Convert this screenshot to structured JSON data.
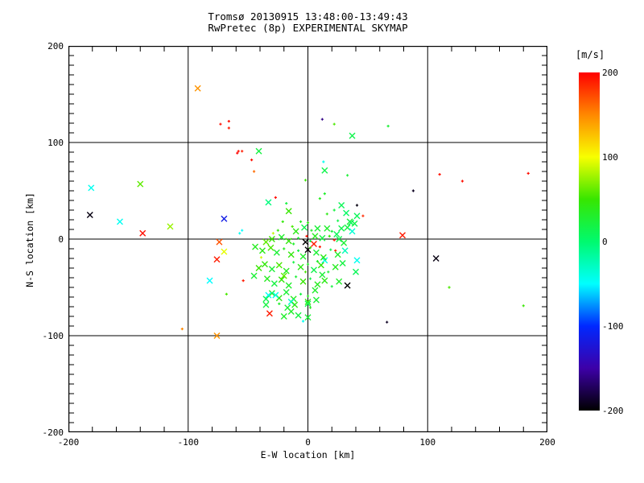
{
  "title": {
    "line1": "Tromsø 20130915 13:48:00-13:49:43",
    "line2": "RwPretec (8p) EXPERIMENTAL SKYMAP"
  },
  "chart_data": {
    "type": "scatter",
    "xlabel": "E-W location [km]",
    "ylabel": "N-S location [km]",
    "xlim": [
      -200,
      200
    ],
    "ylim": [
      -200,
      200
    ],
    "xticks": [
      -200,
      -100,
      0,
      100,
      200
    ],
    "yticks": [
      -200,
      -100,
      0,
      100,
      200
    ],
    "x_minor_interval": 20,
    "y_minor_interval": 10,
    "gridlines": [
      -100,
      0,
      100
    ],
    "grid": true,
    "background": "#ffffff",
    "axis_color": "#000000",
    "marker_types": {
      "x": "cross",
      "d": "small-dot"
    },
    "colorbar": {
      "label": "[m/s]",
      "ticks": [
        200,
        100,
        0,
        -100,
        -200
      ],
      "range": [
        -200,
        200
      ],
      "stops": [
        [
          200,
          "#ff0000"
        ],
        [
          150,
          "#ff8800"
        ],
        [
          100,
          "#f8ff00"
        ],
        [
          50,
          "#37e600"
        ],
        [
          0,
          "#00fa6e"
        ],
        [
          -50,
          "#00ffff"
        ],
        [
          -100,
          "#0028ff"
        ],
        [
          -150,
          "#3d00a8"
        ],
        [
          -200,
          "#000000"
        ]
      ]
    },
    "points": [
      [
        -181,
        53,
        -45,
        "x"
      ],
      [
        -140,
        57,
        60,
        "x"
      ],
      [
        -182,
        25,
        -195,
        "x"
      ],
      [
        -157,
        18,
        -45,
        "x"
      ],
      [
        -115,
        13,
        75,
        "x"
      ],
      [
        -138,
        6,
        195,
        "x"
      ],
      [
        -70,
        21,
        -115,
        "x"
      ],
      [
        -74,
        -3,
        170,
        "x"
      ],
      [
        -70,
        -13,
        95,
        "x"
      ],
      [
        -76,
        -21,
        190,
        "x"
      ],
      [
        -82,
        -43,
        -50,
        "x"
      ],
      [
        -68,
        -57,
        55,
        "d"
      ],
      [
        -59,
        89,
        200,
        "d"
      ],
      [
        -92,
        156,
        145,
        "x"
      ],
      [
        -73,
        119,
        195,
        "d"
      ],
      [
        -66,
        122,
        195,
        "d"
      ],
      [
        -66,
        115,
        190,
        "d"
      ],
      [
        12,
        124,
        -160,
        "d"
      ],
      [
        22,
        119,
        55,
        "d"
      ],
      [
        37,
        107,
        15,
        "x"
      ],
      [
        67,
        117,
        25,
        "d"
      ],
      [
        -58,
        91,
        195,
        "d"
      ],
      [
        -55,
        91,
        190,
        "d"
      ],
      [
        -41,
        91,
        20,
        "x"
      ],
      [
        -47,
        82,
        195,
        "d"
      ],
      [
        -45,
        70,
        160,
        "d"
      ],
      [
        13,
        80,
        -45,
        "d"
      ],
      [
        14,
        71,
        15,
        "x"
      ],
      [
        33,
        66,
        25,
        "d"
      ],
      [
        -2,
        61,
        50,
        "d"
      ],
      [
        110,
        67,
        195,
        "d"
      ],
      [
        129,
        60,
        195,
        "d"
      ],
      [
        184,
        68,
        195,
        "d"
      ],
      [
        88,
        50,
        -190,
        "d"
      ],
      [
        79,
        4,
        190,
        "x"
      ],
      [
        107,
        -20,
        -195,
        "x"
      ],
      [
        118,
        -50,
        55,
        "d"
      ],
      [
        180,
        -69,
        50,
        "d"
      ],
      [
        66,
        -86,
        -190,
        "d"
      ],
      [
        -32,
        -77,
        190,
        "x"
      ],
      [
        -76,
        -100,
        145,
        "x"
      ],
      [
        -105,
        -93,
        150,
        "d"
      ],
      [
        -55,
        9,
        -50,
        "d"
      ],
      [
        -57,
        6,
        -45,
        "d"
      ],
      [
        -54,
        -43,
        190,
        "d"
      ],
      [
        -27,
        43,
        195,
        "d"
      ],
      [
        41,
        35,
        -195,
        "d"
      ],
      [
        46,
        24,
        185,
        "d"
      ],
      [
        5,
        -5,
        190,
        "x"
      ],
      [
        -2,
        -3,
        -200,
        "x"
      ],
      [
        0,
        -11,
        -200,
        "x"
      ],
      [
        -1,
        3,
        195,
        "d"
      ],
      [
        10,
        -8,
        190,
        "d"
      ],
      [
        22,
        -1,
        190,
        "d"
      ],
      [
        23,
        -12,
        185,
        "d"
      ],
      [
        33,
        -48,
        -200,
        "x"
      ],
      [
        14,
        -22,
        -40,
        "x"
      ],
      [
        41,
        -22,
        -45,
        "x"
      ],
      [
        31,
        -12,
        -25,
        "x"
      ],
      [
        -33,
        38,
        -5,
        "x"
      ],
      [
        -18,
        37,
        20,
        "d"
      ],
      [
        14,
        47,
        30,
        "d"
      ],
      [
        10,
        42,
        35,
        "d"
      ],
      [
        28,
        35,
        10,
        "x"
      ],
      [
        32,
        27,
        5,
        "x"
      ],
      [
        16,
        26,
        40,
        "d"
      ],
      [
        -16,
        29,
        50,
        "x"
      ],
      [
        22,
        30,
        20,
        "d"
      ],
      [
        41,
        24,
        10,
        "x"
      ],
      [
        25,
        19,
        15,
        "d"
      ],
      [
        -6,
        18,
        35,
        "d"
      ],
      [
        35,
        18,
        25,
        "x"
      ],
      [
        -21,
        18,
        45,
        "d"
      ],
      [
        0,
        17,
        40,
        "d"
      ],
      [
        36,
        17,
        10,
        "x"
      ],
      [
        39,
        16,
        15,
        "x"
      ],
      [
        16,
        11,
        30,
        "x"
      ],
      [
        28,
        11,
        15,
        "x"
      ],
      [
        33,
        12,
        20,
        "x"
      ],
      [
        -25,
        9,
        45,
        "d"
      ],
      [
        -29,
        6,
        85,
        "d"
      ],
      [
        -10,
        8,
        40,
        "x"
      ],
      [
        3,
        9,
        30,
        "d"
      ],
      [
        8,
        11,
        25,
        "x"
      ],
      [
        20,
        8,
        20,
        "d"
      ],
      [
        -3,
        12,
        15,
        "x"
      ],
      [
        -13,
        13,
        55,
        "d"
      ],
      [
        24,
        5,
        10,
        "x"
      ],
      [
        37,
        8,
        -35,
        "x"
      ],
      [
        -30,
        0,
        50,
        "x"
      ],
      [
        -22,
        2,
        30,
        "x"
      ],
      [
        -16,
        -2,
        45,
        "x"
      ],
      [
        -8,
        1,
        25,
        "d"
      ],
      [
        6,
        3,
        35,
        "x"
      ],
      [
        12,
        1,
        20,
        "x"
      ],
      [
        18,
        3,
        45,
        "d"
      ],
      [
        26,
        0,
        15,
        "x"
      ],
      [
        30,
        -4,
        25,
        "x"
      ],
      [
        -35,
        -3,
        60,
        "x"
      ],
      [
        -12,
        -5,
        30,
        "d"
      ],
      [
        2,
        -2,
        20,
        "d"
      ],
      [
        -38,
        -12,
        40,
        "x"
      ],
      [
        -31,
        -9,
        55,
        "x"
      ],
      [
        -26,
        -14,
        25,
        "x"
      ],
      [
        -20,
        -10,
        35,
        "d"
      ],
      [
        -14,
        -16,
        45,
        "x"
      ],
      [
        -8,
        -12,
        20,
        "d"
      ],
      [
        -4,
        -18,
        30,
        "x"
      ],
      [
        2,
        -9,
        50,
        "d"
      ],
      [
        7,
        -14,
        25,
        "x"
      ],
      [
        13,
        -19,
        40,
        "x"
      ],
      [
        19,
        -11,
        15,
        "d"
      ],
      [
        25,
        -16,
        30,
        "x"
      ],
      [
        -39,
        -19,
        90,
        "d"
      ],
      [
        -44,
        -8,
        35,
        "x"
      ],
      [
        8,
        -23,
        30,
        "d"
      ],
      [
        -12,
        -24,
        20,
        "d"
      ],
      [
        -36,
        -26,
        45,
        "x"
      ],
      [
        -30,
        -31,
        25,
        "x"
      ],
      [
        -24,
        -27,
        55,
        "x"
      ],
      [
        -18,
        -33,
        35,
        "x"
      ],
      [
        -6,
        -29,
        40,
        "x"
      ],
      [
        0,
        -26,
        30,
        "d"
      ],
      [
        5,
        -32,
        15,
        "x"
      ],
      [
        11,
        -27,
        45,
        "x"
      ],
      [
        17,
        -34,
        25,
        "d"
      ],
      [
        23,
        -29,
        35,
        "x"
      ],
      [
        29,
        -25,
        20,
        "x"
      ],
      [
        40,
        -34,
        10,
        "x"
      ],
      [
        -41,
        -30,
        50,
        "x"
      ],
      [
        -2,
        -34,
        55,
        "d"
      ],
      [
        -34,
        -41,
        35,
        "x"
      ],
      [
        -28,
        -46,
        20,
        "x"
      ],
      [
        -22,
        -42,
        45,
        "x"
      ],
      [
        -16,
        -48,
        30,
        "x"
      ],
      [
        -10,
        -39,
        25,
        "d"
      ],
      [
        -4,
        -44,
        50,
        "x"
      ],
      [
        2,
        -41,
        15,
        "d"
      ],
      [
        8,
        -47,
        35,
        "x"
      ],
      [
        14,
        -43,
        40,
        "x"
      ],
      [
        20,
        -49,
        20,
        "d"
      ],
      [
        26,
        -44,
        30,
        "x"
      ],
      [
        -45,
        -38,
        25,
        "x"
      ],
      [
        -20,
        -38,
        60,
        "x"
      ],
      [
        12,
        -37,
        25,
        "x"
      ],
      [
        -30,
        -56,
        30,
        "x"
      ],
      [
        -24,
        -61,
        40,
        "x"
      ],
      [
        -33,
        -58,
        -45,
        "x"
      ],
      [
        -27,
        -58,
        -40,
        "x"
      ],
      [
        -18,
        -55,
        25,
        "x"
      ],
      [
        -12,
        -62,
        35,
        "x"
      ],
      [
        -6,
        -57,
        20,
        "d"
      ],
      [
        0,
        -65,
        45,
        "x"
      ],
      [
        6,
        -53,
        30,
        "x"
      ],
      [
        -35,
        -62,
        15,
        "x"
      ],
      [
        -14,
        -65,
        -30,
        "x"
      ],
      [
        7,
        -63,
        25,
        "x"
      ],
      [
        0,
        -59,
        35,
        "d"
      ],
      [
        -35,
        -68,
        20,
        "x"
      ],
      [
        -24,
        -67,
        30,
        "d"
      ],
      [
        -17,
        -71,
        25,
        "x"
      ],
      [
        -11,
        -68,
        40,
        "x"
      ],
      [
        0,
        -67,
        15,
        "x"
      ],
      [
        -14,
        -75,
        30,
        "x"
      ],
      [
        -8,
        -79,
        20,
        "x"
      ],
      [
        0,
        -81,
        25,
        "x"
      ],
      [
        -4,
        -85,
        -45,
        "d"
      ],
      [
        2,
        -71,
        35,
        "d"
      ],
      [
        -20,
        -80,
        30,
        "x"
      ]
    ]
  }
}
